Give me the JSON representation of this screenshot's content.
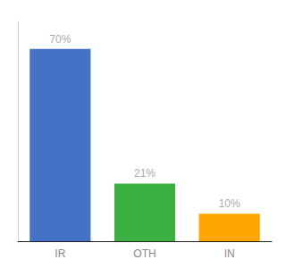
{
  "chart_data": {
    "type": "bar",
    "categories": [
      "IR",
      "OTH",
      "IN"
    ],
    "values": [
      70,
      21,
      10
    ],
    "value_labels": [
      "70%",
      "21%",
      "10%"
    ],
    "data_labels": true,
    "colors": [
      "#4472C4",
      "#3CB043",
      "#FFA500"
    ],
    "ylim": [
      0,
      80
    ],
    "grid": false,
    "tick_labels": "x"
  }
}
